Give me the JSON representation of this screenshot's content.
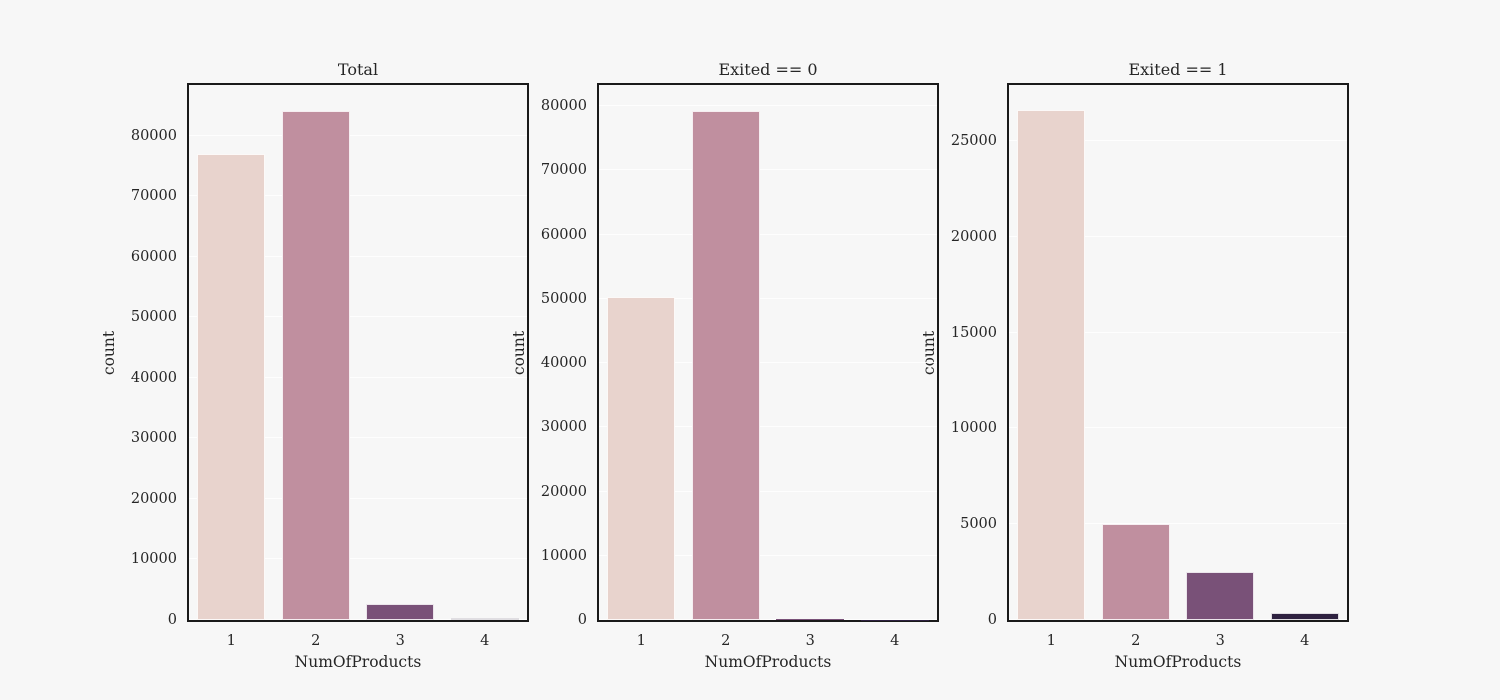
{
  "figure": {
    "background_color": "#f7f7f7",
    "spine_color": "#1a1a1a",
    "text_color": "#262626",
    "gridline_color": "#fbfbfb",
    "bar_colors": [
      "#e8d3cd",
      "#c08f9f",
      "#795178",
      "#2e2140"
    ]
  },
  "chart_data": [
    {
      "type": "bar",
      "title": "Total",
      "categories": [
        "1",
        "2",
        "3",
        "4"
      ],
      "values": [
        77000,
        84150,
        2700,
        400
      ],
      "xlabel": "NumOfProducts",
      "ylabel": "count",
      "ylim": [
        0,
        88400
      ],
      "yticks": [
        0,
        10000,
        20000,
        30000,
        40000,
        50000,
        60000,
        70000,
        80000
      ],
      "grid": "horizontal",
      "legend": "none"
    },
    {
      "type": "bar",
      "title": "Exited == 0",
      "categories": [
        "1",
        "2",
        "3",
        "4"
      ],
      "values": [
        50300,
        79300,
        150,
        50
      ],
      "xlabel": "NumOfProducts",
      "ylabel": "count",
      "ylim": [
        0,
        83300
      ],
      "yticks": [
        0,
        10000,
        20000,
        30000,
        40000,
        50000,
        60000,
        70000,
        80000
      ],
      "grid": "horizontal",
      "legend": "none"
    },
    {
      "type": "bar",
      "title": "Exited == 1",
      "categories": [
        "1",
        "2",
        "3",
        "4"
      ],
      "values": [
        26600,
        5000,
        2500,
        350
      ],
      "xlabel": "NumOfProducts",
      "ylabel": "count",
      "ylim": [
        0,
        27930
      ],
      "yticks": [
        0,
        5000,
        10000,
        15000,
        20000,
        25000
      ],
      "grid": "horizontal",
      "legend": "none"
    }
  ]
}
